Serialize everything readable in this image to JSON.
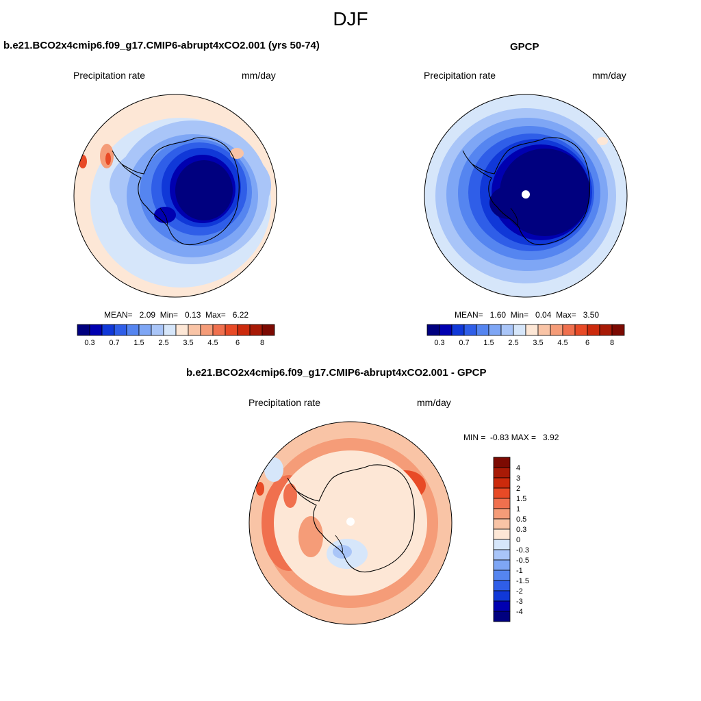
{
  "figure": {
    "title": "DJF",
    "panels": [
      {
        "title": "b.e21.BCO2x4cmip6.f09_g17.CMIP6-abrupt4xCO2.001 (yrs 50-74)",
        "left_label": "Precipitation rate",
        "right_label": "mm/day",
        "stats": "MEAN=   2.09  Min=   0.13  Max=   6.22"
      },
      {
        "title": "GPCP",
        "left_label": "Precipitation rate",
        "right_label": "mm/day",
        "stats": "MEAN=   1.60  Min=   0.04  Max=   3.50"
      },
      {
        "title": "b.e21.BCO2x4cmip6.f09_g17.CMIP6-abrupt4xCO2.001 - GPCP",
        "left_label": "Precipitation rate",
        "right_label": "mm/day",
        "stats": "MIN =  -0.83 MAX =   3.92"
      }
    ]
  },
  "chart_data": [
    {
      "type": "heatmap",
      "title": "b.e21.BCO2x4cmip6.f09_g17.CMIP6-abrupt4xCO2.001 (yrs 50-74)",
      "variable": "Precipitation rate",
      "units": "mm/day",
      "projection": "south polar stereographic",
      "mean": 2.09,
      "min": 0.13,
      "max": 6.22,
      "colorbar": {
        "labels": [
          "0.3",
          "0.7",
          "1.5",
          "2.5",
          "3.5",
          "4.5",
          "6",
          "8"
        ],
        "colors": [
          "#00007f",
          "#0000b0",
          "#1038d8",
          "#2f5ee8",
          "#5585f0",
          "#7ea6f5",
          "#a9c5f8",
          "#d6e6fa",
          "#fde7d6",
          "#f9c4a6",
          "#f59c78",
          "#f0704e",
          "#e84a26",
          "#cc2a0c",
          "#a81a06",
          "#7c0a02"
        ]
      }
    },
    {
      "type": "heatmap",
      "title": "GPCP",
      "variable": "Precipitation rate",
      "units": "mm/day",
      "projection": "south polar stereographic",
      "mean": 1.6,
      "min": 0.04,
      "max": 3.5,
      "colorbar": {
        "labels": [
          "0.3",
          "0.7",
          "1.5",
          "2.5",
          "3.5",
          "4.5",
          "6",
          "8"
        ],
        "colors": [
          "#00007f",
          "#0000b0",
          "#1038d8",
          "#2f5ee8",
          "#5585f0",
          "#7ea6f5",
          "#a9c5f8",
          "#d6e6fa",
          "#fde7d6",
          "#f9c4a6",
          "#f59c78",
          "#f0704e",
          "#e84a26",
          "#cc2a0c",
          "#a81a06",
          "#7c0a02"
        ]
      }
    },
    {
      "type": "heatmap",
      "title": "b.e21.BCO2x4cmip6.f09_g17.CMIP6-abrupt4xCO2.001 - GPCP",
      "variable": "Precipitation rate",
      "units": "mm/day",
      "projection": "south polar stereographic",
      "min": -0.83,
      "max": 3.92,
      "colorbar": {
        "orientation": "vertical",
        "labels": [
          "4",
          "3",
          "2",
          "1.5",
          "1",
          "0.5",
          "0.3",
          "0",
          "-0.3",
          "-0.5",
          "-1",
          "-1.5",
          "-2",
          "-3",
          "-4"
        ],
        "colors": [
          "#7c0a02",
          "#a81a06",
          "#cc2a0c",
          "#e84a26",
          "#f0704e",
          "#f59c78",
          "#f9c4a6",
          "#fde7d6",
          "#d6e6fa",
          "#a9c5f8",
          "#7ea6f5",
          "#5585f0",
          "#2f5ee8",
          "#1038d8",
          "#0000b0",
          "#00007f"
        ]
      }
    }
  ]
}
